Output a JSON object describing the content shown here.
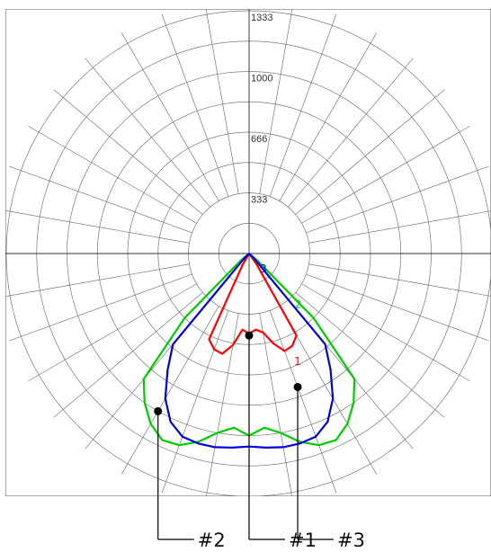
{
  "chart_data": {
    "type": "polar",
    "radial_ticks": [
      "333",
      "1000",
      "666",
      "1333"
    ],
    "radial_range": [
      0,
      1333
    ],
    "angle_spokes_deg": 10,
    "grid": true,
    "series": [
      {
        "tag": "1",
        "color": "#ff0000",
        "angles_deg": [
          -90,
          -80,
          -70,
          -60,
          -50,
          -45,
          -40,
          -35,
          -30,
          -25,
          -20,
          -15,
          -10,
          -5,
          0,
          5,
          10,
          15,
          20,
          25,
          30,
          35,
          40,
          45,
          50,
          60,
          70,
          80,
          90
        ],
        "values": [
          0,
          0,
          0,
          0,
          0,
          0,
          0,
          0,
          70,
          520,
          560,
          570,
          510,
          420,
          440,
          420,
          440,
          510,
          570,
          560,
          520,
          70,
          0,
          0,
          0,
          0,
          0,
          0,
          0
        ]
      },
      {
        "tag": "2",
        "color": "#00cc00",
        "angles_deg": [
          -90,
          -80,
          -70,
          -60,
          -50,
          -45,
          -40,
          -35,
          -30,
          -25,
          -20,
          -15,
          -10,
          -5,
          0,
          5,
          10,
          15,
          20,
          25,
          30,
          35,
          40,
          45,
          50,
          60,
          70,
          80,
          90
        ],
        "values": [
          0,
          0,
          0,
          0,
          60,
          500,
          900,
          1000,
          1080,
          1130,
          1120,
          1070,
          1000,
          960,
          1000,
          960,
          1000,
          1070,
          1120,
          1130,
          1080,
          1000,
          900,
          500,
          60,
          0,
          0,
          0,
          0
        ]
      },
      {
        "tag": "3",
        "color": "#0000dd",
        "angles_deg": [
          -90,
          -80,
          -70,
          -60,
          -50,
          -45,
          -40,
          -35,
          -30,
          -25,
          -20,
          -15,
          -10,
          -5,
          0,
          5,
          10,
          15,
          20,
          25,
          30,
          35,
          40,
          45,
          50,
          60,
          70,
          80,
          90
        ],
        "values": [
          0,
          0,
          0,
          0,
          0,
          40,
          650,
          780,
          920,
          1020,
          1070,
          1080,
          1080,
          1070,
          1060,
          1070,
          1080,
          1080,
          1070,
          1020,
          920,
          780,
          650,
          40,
          0,
          0,
          0,
          0,
          0
        ]
      }
    ],
    "callouts": [
      {
        "label": "#1",
        "angle_deg": 0,
        "value": 450
      },
      {
        "label": "#2",
        "angle_deg": -30,
        "value": 1000
      },
      {
        "label": "#3",
        "angle_deg": 20,
        "value": 780
      }
    ]
  }
}
